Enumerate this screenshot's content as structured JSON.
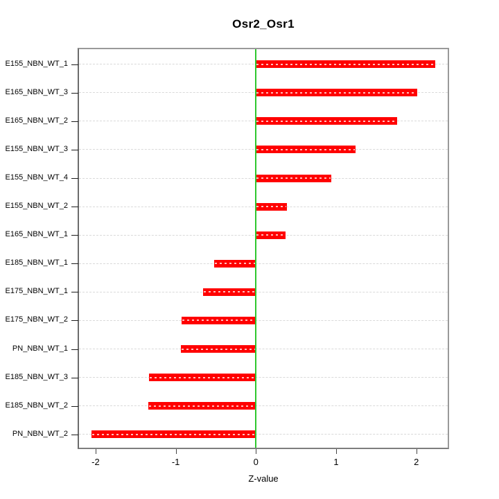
{
  "title": "Osr2_Osr1",
  "chart_data": {
    "type": "bar",
    "orientation": "horizontal",
    "title": "Osr2_Osr1",
    "xlabel": "Z-value",
    "categories": [
      "E155_NBN_WT_1",
      "E165_NBN_WT_3",
      "E165_NBN_WT_2",
      "E155_NBN_WT_3",
      "E155_NBN_WT_4",
      "E155_NBN_WT_2",
      "E165_NBN_WT_1",
      "E185_NBN_WT_1",
      "E175_NBN_WT_1",
      "E175_NBN_WT_2",
      "PN_NBN_WT_1",
      "E185_NBN_WT_3",
      "E185_NBN_WT_2",
      "PN_NBN_WT_2"
    ],
    "values": [
      2.24,
      2.01,
      1.76,
      1.24,
      0.94,
      0.39,
      0.37,
      -0.52,
      -0.66,
      -0.93,
      -0.94,
      -1.33,
      -1.34,
      -2.05
    ],
    "x_ticks": [
      -2,
      -1,
      0,
      1,
      2
    ],
    "xlim": [
      -2.22,
      2.4
    ],
    "grid": "dashed-horizontal",
    "zero_line_value": 0,
    "legend_position": "none",
    "colors": {
      "bar": "#ff0000",
      "zero_line": "#2ec72e",
      "grid": "#d9d9d9",
      "frame": "#999999",
      "tick": "#444444",
      "text": "#000000",
      "background": "#ffffff"
    }
  }
}
